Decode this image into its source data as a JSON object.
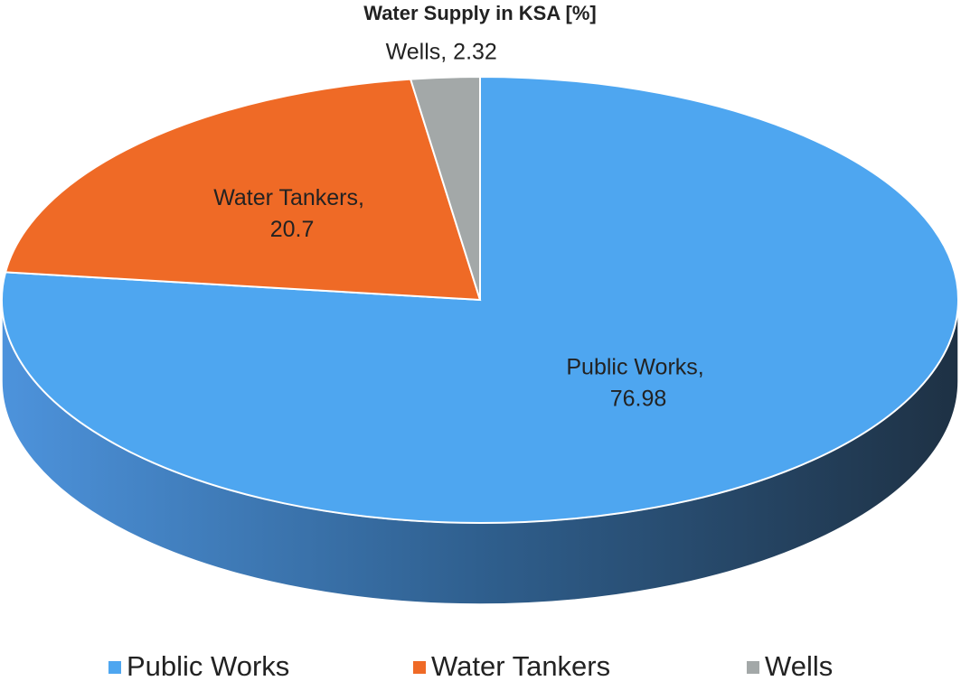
{
  "chart_data": {
    "type": "pie3d",
    "title": "Water Supply in KSA [%]",
    "categories": [
      "Public Works",
      "Water Tankers",
      "Wells"
    ],
    "values": [
      76.98,
      20.7,
      2.32
    ],
    "value_labels": [
      "Public Works, 76.98",
      "Water Tankers, 20.7",
      "Wells, 2.32"
    ],
    "colors": [
      "#4ea6f0",
      "#ef6a26",
      "#a3a8a8"
    ],
    "legend": "bottom"
  }
}
